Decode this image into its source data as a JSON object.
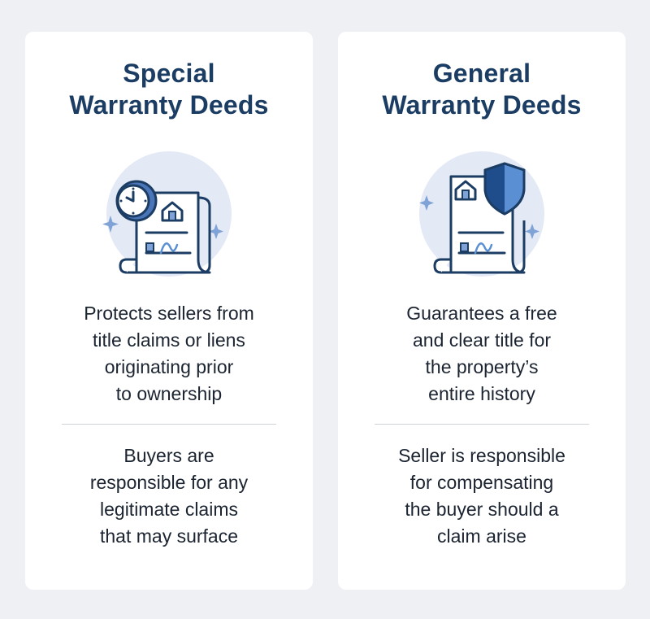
{
  "colors": {
    "background": "#eef0f3",
    "card": "#ffffff",
    "title": "#1c3d63",
    "text": "#1b2430",
    "icon_outline": "#1c3d63",
    "icon_circle": "#e3e9f5",
    "accent_blue": "#5b8fd4",
    "divider": "#cfd4da"
  },
  "cards": [
    {
      "title_lines": [
        "Special",
        "Warranty Deeds"
      ],
      "icon": "clock-deed-icon",
      "description_lines": [
        "Protects sellers from",
        "title claims or liens",
        "originating prior",
        "to ownership"
      ],
      "responsibility_lines": [
        "Buyers are",
        "responsible for any",
        "legitimate claims",
        "that may surface"
      ]
    },
    {
      "title_lines": [
        "General",
        "Warranty Deeds"
      ],
      "icon": "shield-deed-icon",
      "description_lines": [
        "Guarantees a free",
        "and clear title for",
        "the property’s",
        "entire history"
      ],
      "responsibility_lines": [
        "Seller is responsible",
        "for compensating",
        "the buyer should a",
        "claim arise"
      ]
    }
  ]
}
